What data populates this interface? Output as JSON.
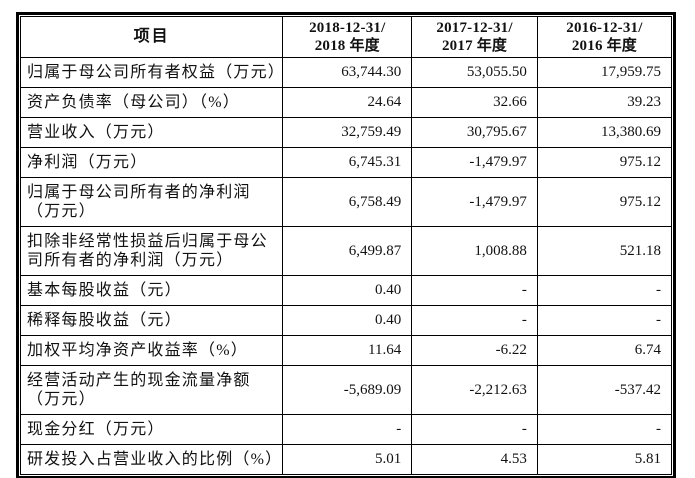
{
  "table": {
    "border_color": "#000000",
    "text_color": "#111111",
    "background_color": "#ffffff",
    "header": {
      "item_label": "项目",
      "periods": [
        "2018-12-31/\n2018 年度",
        "2017-12-31/\n2017 年度",
        "2016-12-31/\n2016 年度"
      ]
    },
    "rows": [
      {
        "label": "归属于母公司所有者权益（万元）",
        "v2018": "63,744.30",
        "v2017": "53,055.50",
        "v2016": "17,959.75"
      },
      {
        "label": "资产负债率（母公司）（%）",
        "v2018": "24.64",
        "v2017": "32.66",
        "v2016": "39.23"
      },
      {
        "label": "营业收入（万元）",
        "v2018": "32,759.49",
        "v2017": "30,795.67",
        "v2016": "13,380.69"
      },
      {
        "label": "净利润（万元）",
        "v2018": "6,745.31",
        "v2017": "-1,479.97",
        "v2016": "975.12"
      },
      {
        "label": "归属于母公司所有者的净利润（万元）",
        "v2018": "6,758.49",
        "v2017": "-1,479.97",
        "v2016": "975.12"
      },
      {
        "label": "扣除非经常性损益后归属于母公司所有者的净利润（万元）",
        "v2018": "6,499.87",
        "v2017": "1,008.88",
        "v2016": "521.18"
      },
      {
        "label": "基本每股收益（元）",
        "v2018": "0.40",
        "v2017": "-",
        "v2016": "-"
      },
      {
        "label": "稀释每股收益（元）",
        "v2018": "0.40",
        "v2017": "-",
        "v2016": "-"
      },
      {
        "label": "加权平均净资产收益率（%）",
        "v2018": "11.64",
        "v2017": "-6.22",
        "v2016": "6.74"
      },
      {
        "label": "经营活动产生的现金流量净额（万元）",
        "v2018": "-5,689.09",
        "v2017": "-2,212.63",
        "v2016": "-537.42"
      },
      {
        "label": "现金分红（万元）",
        "v2018": "-",
        "v2017": "-",
        "v2016": "-"
      },
      {
        "label": "研发投入占营业收入的比例（%）",
        "v2018": "5.01",
        "v2017": "4.53",
        "v2016": "5.81"
      }
    ]
  }
}
